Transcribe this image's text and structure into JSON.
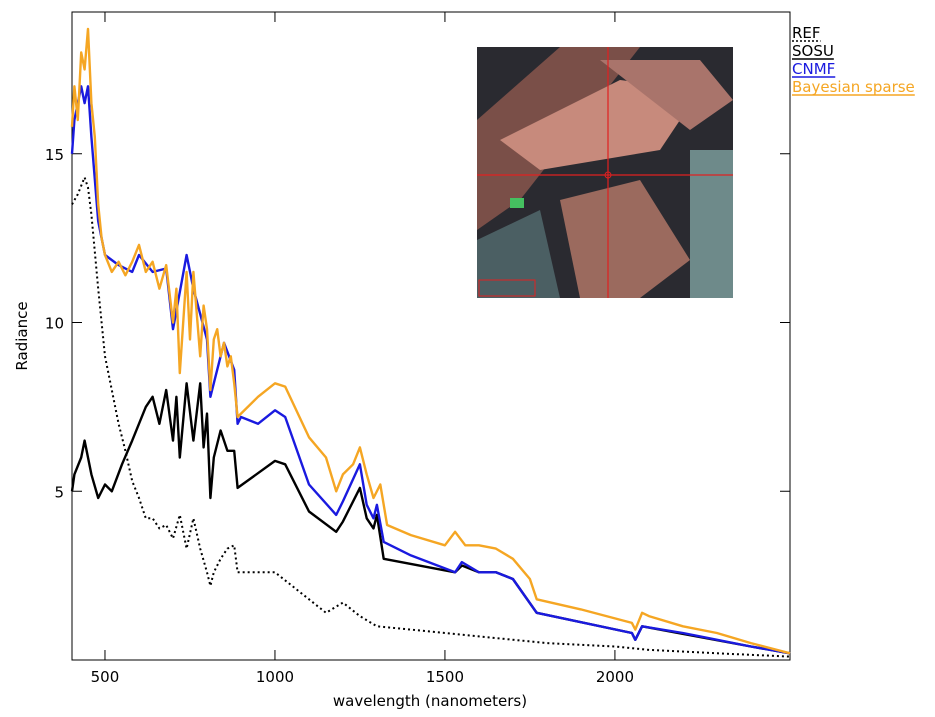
{
  "chart_data": {
    "type": "line",
    "x_label": "wavelength (nanometers)",
    "y_label": "Radiance",
    "xlim": [
      403,
      2515
    ],
    "ylim": [
      0,
      19.2
    ],
    "xticks": [
      500,
      1000,
      1500,
      2000
    ],
    "yticks": [
      5,
      10,
      15
    ],
    "series": [
      {
        "name": "REF",
        "color": "#000000",
        "dash": "dotted",
        "x": [
          403,
          420,
          440,
          450,
          460,
          480,
          500,
          520,
          540,
          560,
          580,
          600,
          620,
          640,
          660,
          680,
          700,
          720,
          740,
          760,
          780,
          800,
          810,
          820,
          840,
          860,
          880,
          890,
          1000,
          1050,
          1150,
          1200,
          1250,
          1300,
          1400,
          1600,
          1800,
          2000,
          2100,
          2300,
          2515
        ],
        "values": [
          13.5,
          13.8,
          14.3,
          14,
          13.2,
          11,
          9,
          8,
          7,
          6.2,
          5.3,
          4.8,
          4.2,
          4.2,
          3.9,
          4.0,
          3.6,
          4.3,
          3.3,
          4.2,
          3.3,
          2.6,
          2.2,
          2.6,
          3.0,
          3.3,
          3.4,
          2.6,
          2.6,
          2.2,
          1.4,
          1.7,
          1.3,
          1.0,
          0.9,
          0.7,
          0.5,
          0.4,
          0.3,
          0.2,
          0.1
        ]
      },
      {
        "name": "SOSU",
        "color": "#000000",
        "dash": "solid",
        "x": [
          403,
          410,
          430,
          440,
          460,
          480,
          500,
          520,
          550,
          580,
          620,
          640,
          660,
          680,
          700,
          710,
          720,
          740,
          760,
          780,
          790,
          800,
          810,
          820,
          840,
          860,
          880,
          890,
          1000,
          1030,
          1100,
          1180,
          1200,
          1250,
          1270,
          1290,
          1300,
          1320,
          1530,
          1550,
          1600,
          1650,
          1700,
          1770,
          2050,
          2060,
          2080,
          2400,
          2515
        ],
        "values": [
          5,
          5.5,
          6,
          6.5,
          5.5,
          4.8,
          5.2,
          5.0,
          5.8,
          6.5,
          7.5,
          7.8,
          7.0,
          8.0,
          6.5,
          7.8,
          6.0,
          8.2,
          6.5,
          8.2,
          6.3,
          7.3,
          4.8,
          6.0,
          6.8,
          6.2,
          6.2,
          5.1,
          5.9,
          5.8,
          4.4,
          3.8,
          4.1,
          5.1,
          4.2,
          3.9,
          4.3,
          3.0,
          2.6,
          2.8,
          2.6,
          2.6,
          2.4,
          1.4,
          0.8,
          0.6,
          1.0,
          0.4,
          0.2
        ]
      },
      {
        "name": "CNMF",
        "color": "#1a1adf",
        "dash": "solid",
        "x": [
          403,
          410,
          430,
          440,
          450,
          460,
          480,
          500,
          540,
          580,
          600,
          640,
          680,
          700,
          740,
          760,
          800,
          810,
          850,
          880,
          890,
          900,
          950,
          1000,
          1030,
          1100,
          1180,
          1200,
          1250,
          1270,
          1290,
          1300,
          1320,
          1400,
          1530,
          1550,
          1600,
          1650,
          1700,
          1770,
          2050,
          2060,
          2080,
          2200,
          2400,
          2515
        ],
        "values": [
          15,
          16,
          17,
          16.5,
          17,
          15.5,
          13,
          12,
          11.7,
          11.5,
          12,
          11.5,
          11.6,
          9.8,
          12,
          11,
          9.5,
          7.8,
          9.4,
          8.6,
          7.0,
          7.2,
          7.0,
          7.4,
          7.2,
          5.2,
          4.3,
          4.7,
          5.8,
          4.6,
          4.2,
          4.6,
          3.5,
          3.1,
          2.6,
          2.9,
          2.6,
          2.6,
          2.4,
          1.4,
          0.8,
          0.6,
          1.0,
          0.8,
          0.4,
          0.2
        ]
      },
      {
        "name": "Bayesian sparse",
        "color": "#f5a623",
        "dash": "solid",
        "x": [
          403,
          410,
          420,
          430,
          440,
          450,
          460,
          470,
          480,
          490,
          500,
          520,
          540,
          560,
          580,
          600,
          620,
          640,
          660,
          680,
          700,
          710,
          720,
          740,
          750,
          760,
          780,
          790,
          800,
          810,
          820,
          830,
          840,
          850,
          860,
          870,
          880,
          890,
          900,
          950,
          1000,
          1030,
          1100,
          1150,
          1180,
          1200,
          1230,
          1250,
          1270,
          1290,
          1310,
          1330,
          1400,
          1500,
          1530,
          1560,
          1600,
          1650,
          1700,
          1750,
          1770,
          1900,
          2050,
          2060,
          2080,
          2100,
          2200,
          2300,
          2400,
          2515
        ],
        "values": [
          15.8,
          17,
          16,
          18,
          17.5,
          18.7,
          16.5,
          15.5,
          13.5,
          12.5,
          12,
          11.5,
          11.8,
          11.4,
          11.8,
          12.3,
          11.5,
          11.8,
          11,
          11.7,
          10,
          11,
          8.5,
          11.5,
          9.5,
          11.5,
          9,
          10.5,
          9.8,
          8.0,
          9.5,
          9.8,
          9,
          9.4,
          8.7,
          9,
          8.2,
          7.2,
          7.3,
          7.8,
          8.2,
          8.1,
          6.6,
          6.0,
          5.0,
          5.5,
          5.8,
          6.3,
          5.5,
          4.8,
          5.2,
          4.0,
          3.7,
          3.4,
          3.8,
          3.4,
          3.4,
          3.3,
          3.0,
          2.4,
          1.8,
          1.5,
          1.1,
          0.9,
          1.4,
          1.3,
          1.0,
          0.8,
          0.5,
          0.2
        ]
      }
    ]
  }
}
